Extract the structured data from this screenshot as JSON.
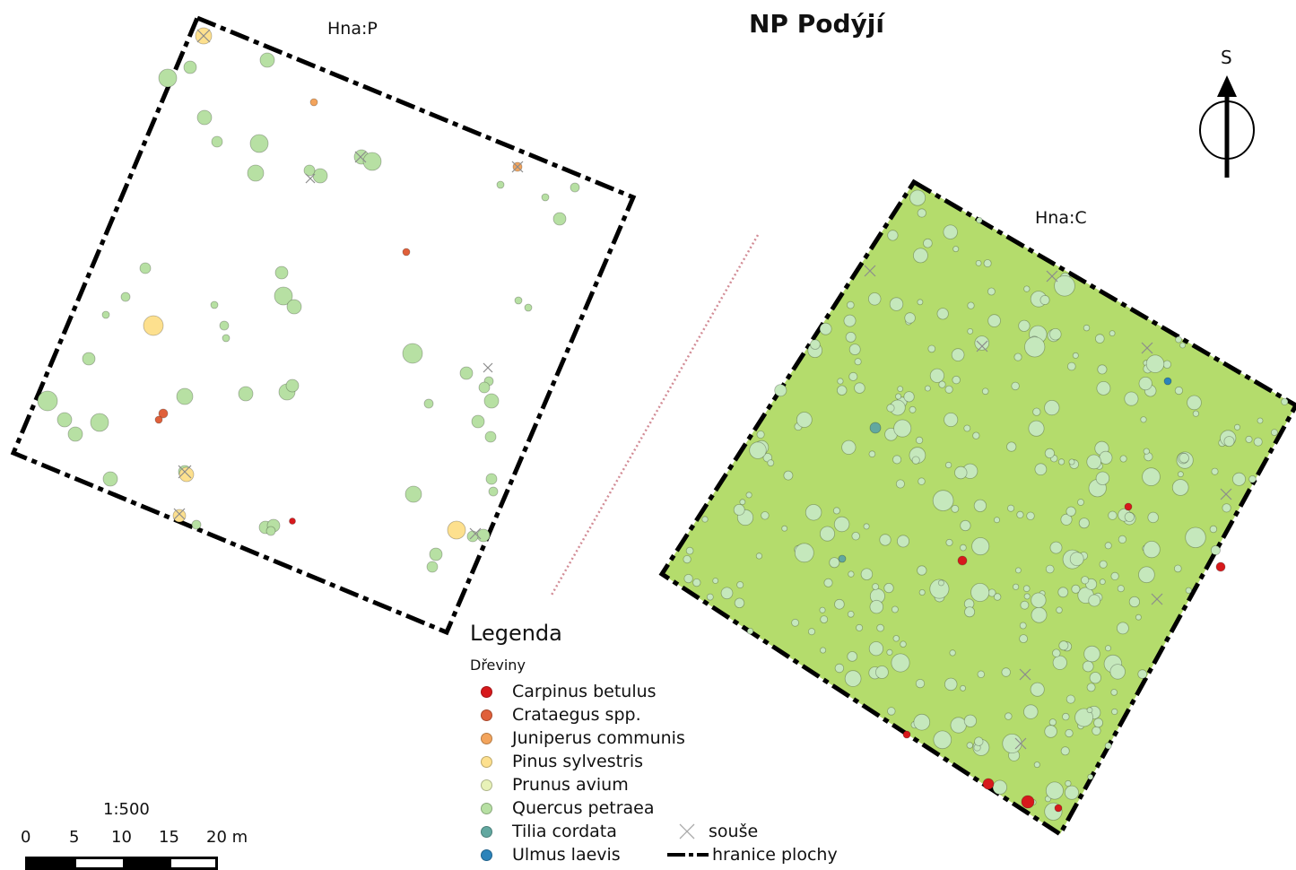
{
  "title": "NP Podýjí",
  "plots": [
    {
      "label": "Hna:P"
    },
    {
      "label": "Hna:C"
    }
  ],
  "north_arrow": {
    "letter": "S"
  },
  "legend": {
    "title": "Legenda",
    "group_title": "Dřeviny",
    "items": [
      {
        "label": "Carpinus betulus",
        "color": "#d7191c"
      },
      {
        "label": "Crataegus spp.",
        "color": "#e0603a"
      },
      {
        "label": "Juniperus communis",
        "color": "#f3a45c"
      },
      {
        "label": "Pinus sylvestris",
        "color": "#fde08e"
      },
      {
        "label": "Prunus avium",
        "color": "#e8f2b8"
      },
      {
        "label": "Quercus petraea",
        "color": "#b7e0a3"
      },
      {
        "label": "Tilia cordata",
        "color": "#62a8a0"
      },
      {
        "label": "Ulmus laevis",
        "color": "#2b83ba"
      }
    ],
    "snag_label": "souše",
    "boundary_label": "hranice plochy"
  },
  "scale": {
    "ratio": "1:500",
    "ticks": [
      "0",
      "5",
      "10",
      "15",
      "20 m"
    ]
  },
  "colors": {
    "plot_fill_c": "#b4dc6c",
    "tree_fill": "#b7e0a3",
    "tree_fill_dense": "#c5e8bc",
    "boundary": "#000000",
    "dotted_line": "#d28c96"
  }
}
